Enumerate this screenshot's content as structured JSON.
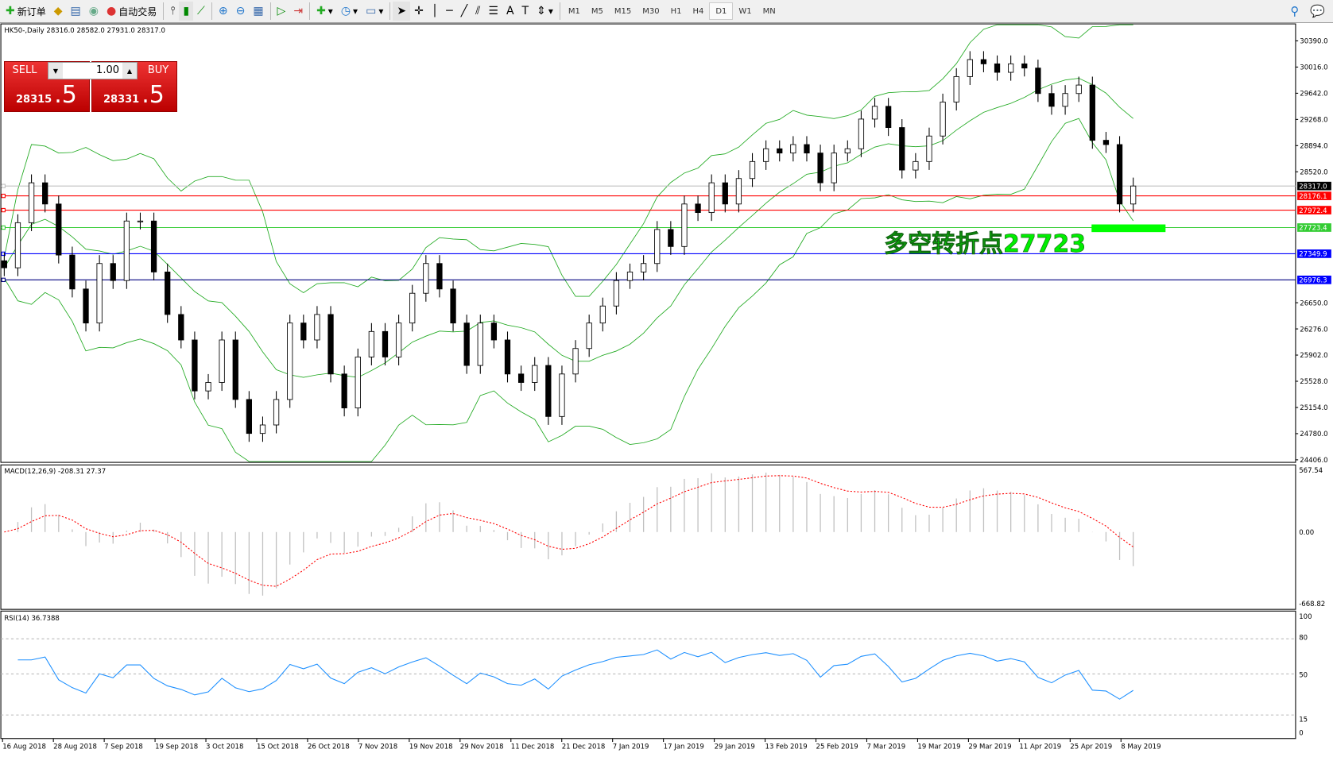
{
  "toolbar": {
    "new_order": "新订单",
    "auto_trading": "自动交易",
    "timeframes": [
      "M1",
      "M5",
      "M15",
      "M30",
      "H1",
      "H4",
      "D1",
      "W1",
      "MN"
    ],
    "active_timeframe": "D1"
  },
  "chart": {
    "header": "HK50-,Daily  28316.0 28582.0 27931.0 28317.0",
    "symbol": "HK50-",
    "period": "Daily",
    "ohlc": {
      "open": 28316.0,
      "high": 28582.0,
      "low": 27931.0,
      "close": 28317.0
    },
    "annotation": "多空转折点27723",
    "annotation_color": "#00ff00",
    "price_ticks": [
      30390.0,
      30016.0,
      29642.0,
      29268.0,
      28894.0,
      28520.0,
      26650.0,
      26276.0,
      25902.0,
      25528.0,
      25154.0,
      24780.0,
      24406.0
    ],
    "price_ticks_text": [
      "30390.0",
      "30016.0",
      "29642.0",
      "29268.0",
      "28894.0",
      "28520.0",
      "26650.0",
      "26276.0",
      "25902.0",
      "25528.0",
      "25154.0",
      "24780.0",
      "24406.0"
    ],
    "levels": [
      {
        "price": 28317.0,
        "label": "28317.0",
        "color": "#000000",
        "line": "#c0c0c0"
      },
      {
        "price": 28176.1,
        "label": "28176.1",
        "color": "#ff0000",
        "line": "#ff0000"
      },
      {
        "price": 27972.4,
        "label": "27972.4",
        "color": "#ff0000",
        "line": "#ff0000"
      },
      {
        "price": 27723.4,
        "label": "27723.4",
        "color": "#33cc33",
        "line": "#33cc33"
      },
      {
        "price": 27349.9,
        "label": "27349.9",
        "color": "#0000ff",
        "line": "#0000ff"
      },
      {
        "price": 26976.3,
        "label": "26976.3",
        "color": "#0000ff",
        "line": "#000080"
      }
    ],
    "bands_color": "#22aa22",
    "closes": [
      27149,
      27793,
      28363,
      28060,
      27331,
      26846,
      26360,
      27210,
      26967,
      27817,
      27817,
      27089,
      26482,
      26118,
      25390,
      25511,
      26118,
      25268,
      24783,
      24904,
      25268,
      26360,
      26118,
      26482,
      25632,
      25147,
      25875,
      26239,
      25875,
      26360,
      26785,
      27210,
      26846,
      26360,
      25754,
      26360,
      26118,
      25632,
      25511,
      25754,
      25025,
      25632,
      25996,
      26360,
      26603,
      26967,
      27089,
      27210,
      27696,
      27453,
      28060,
      27938,
      28363,
      28060,
      28424,
      28667,
      28849,
      28788,
      28909,
      28788,
      28363,
      28788,
      28849,
      29273,
      29455,
      29152,
      28545,
      28667,
      29031,
      29516,
      29880,
      30123,
      30062,
      29941,
      30062,
      30002,
      29638,
      29455,
      29638,
      29759,
      28970,
      28909,
      28060,
      28317
    ]
  },
  "trade": {
    "sell_label": "SELL",
    "buy_label": "BUY",
    "lot": "1.00",
    "sell_price": "28315",
    "sell_frac": ".5",
    "buy_price": "28331",
    "buy_frac": ".5"
  },
  "macd": {
    "label": "MACD(12,26,9) -208.31 27.37",
    "ticks": [
      "567.54",
      "0.00",
      "-668.82"
    ],
    "signal_color": "#ff0000",
    "hist_color": "#c0c0c0"
  },
  "rsi": {
    "label": "RSI(14) 36.7388",
    "ticks": [
      "100",
      "80",
      "50",
      "15",
      "0"
    ],
    "color": "#1e90ff"
  },
  "time_axis": [
    "16 Aug 2018",
    "28 Aug 2018",
    "7 Sep 2018",
    "19 Sep 2018",
    "3 Oct 2018",
    "15 Oct 2018",
    "26 Oct 2018",
    "7 Nov 2018",
    "19 Nov 2018",
    "29 Nov 2018",
    "11 Dec 2018",
    "21 Dec 2018",
    "7 Jan 2019",
    "17 Jan 2019",
    "29 Jan 2019",
    "13 Feb 2019",
    "25 Feb 2019",
    "7 Mar 2019",
    "19 Mar 2019",
    "29 Mar 2019",
    "11 Apr 2019",
    "25 Apr 2019",
    "8 May 2019"
  ]
}
